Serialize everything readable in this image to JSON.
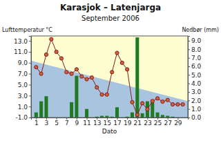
{
  "chart_data": {
    "type": "bar",
    "title": "Karasjok – Latenjarga",
    "subtitle": "September 2006",
    "y_label": "Lufttemperatur °C",
    "y2_label": "Nedbør (mm)",
    "x_label": "Dato",
    "x": [
      1,
      2,
      3,
      4,
      5,
      6,
      7,
      8,
      9,
      10,
      11,
      12,
      13,
      14,
      15,
      16,
      17,
      18,
      19,
      20,
      21,
      22,
      23,
      24,
      25,
      26,
      27,
      28,
      29,
      30
    ],
    "xlim": [
      0,
      31
    ],
    "xticks": [
      1,
      3,
      5,
      7,
      9,
      11,
      13,
      15,
      17,
      19,
      21,
      23,
      25,
      27,
      29
    ],
    "ylim": [
      -1,
      13.9
    ],
    "yticks": [
      {
        "value": -1,
        "label": "-1.0"
      },
      {
        "value": 1,
        "label": "1.0"
      },
      {
        "value": 3,
        "label": "3.0"
      },
      {
        "value": 5,
        "label": "5.0"
      },
      {
        "value": 7,
        "label": "7.0"
      },
      {
        "value": 9,
        "label": "9.0"
      },
      {
        "value": 11,
        "label": "11.0"
      },
      {
        "value": 13,
        "label": "13.0"
      }
    ],
    "y2lim": [
      0,
      9.57
    ],
    "y2ticks": [
      {
        "value": 0,
        "label": "0.0"
      },
      {
        "value": 1,
        "label": "1.0"
      },
      {
        "value": 2,
        "label": "2.0"
      },
      {
        "value": 3,
        "label": "3.0"
      },
      {
        "value": 4,
        "label": "4.0"
      },
      {
        "value": 5,
        "label": "5.0"
      },
      {
        "value": 6,
        "label": "6.0"
      },
      {
        "value": 7,
        "label": "7.0"
      },
      {
        "value": 8,
        "label": "8.0"
      },
      {
        "value": 9,
        "label": "9.0"
      }
    ],
    "series": [
      {
        "type": "area",
        "color": "#a9c4df",
        "x": [
          0,
          31
        ],
        "values": [
          9.4,
          2.0
        ]
      },
      {
        "type": "bar",
        "axis": "y2",
        "color": "#1f7a22",
        "values": [
          0.6,
          1.9,
          2.5,
          0,
          0,
          0,
          0,
          1.8,
          4.9,
          0,
          1.0,
          0,
          0.1,
          0.2,
          0.2,
          0.1,
          1.2,
          0,
          0.1,
          0.6,
          9.4,
          0.5,
          1.9,
          1.9,
          0.6,
          0.3,
          0.2,
          0.1,
          0,
          0
        ]
      },
      {
        "type": "line",
        "color": "#8b1a1a",
        "marker": "circle",
        "values": [
          8.2,
          7.0,
          10.5,
          13.3,
          11.0,
          9.8,
          7.3,
          7.0,
          7.8,
          6.5,
          6.0,
          6.3,
          4.5,
          3.2,
          3.2,
          7.3,
          10.8,
          9.0,
          7.8,
          1.8,
          -0.5,
          1.6,
          0.5,
          2.0,
          2.5,
          1.9,
          2.2,
          1.4,
          1.4,
          1.4
        ]
      }
    ]
  }
}
